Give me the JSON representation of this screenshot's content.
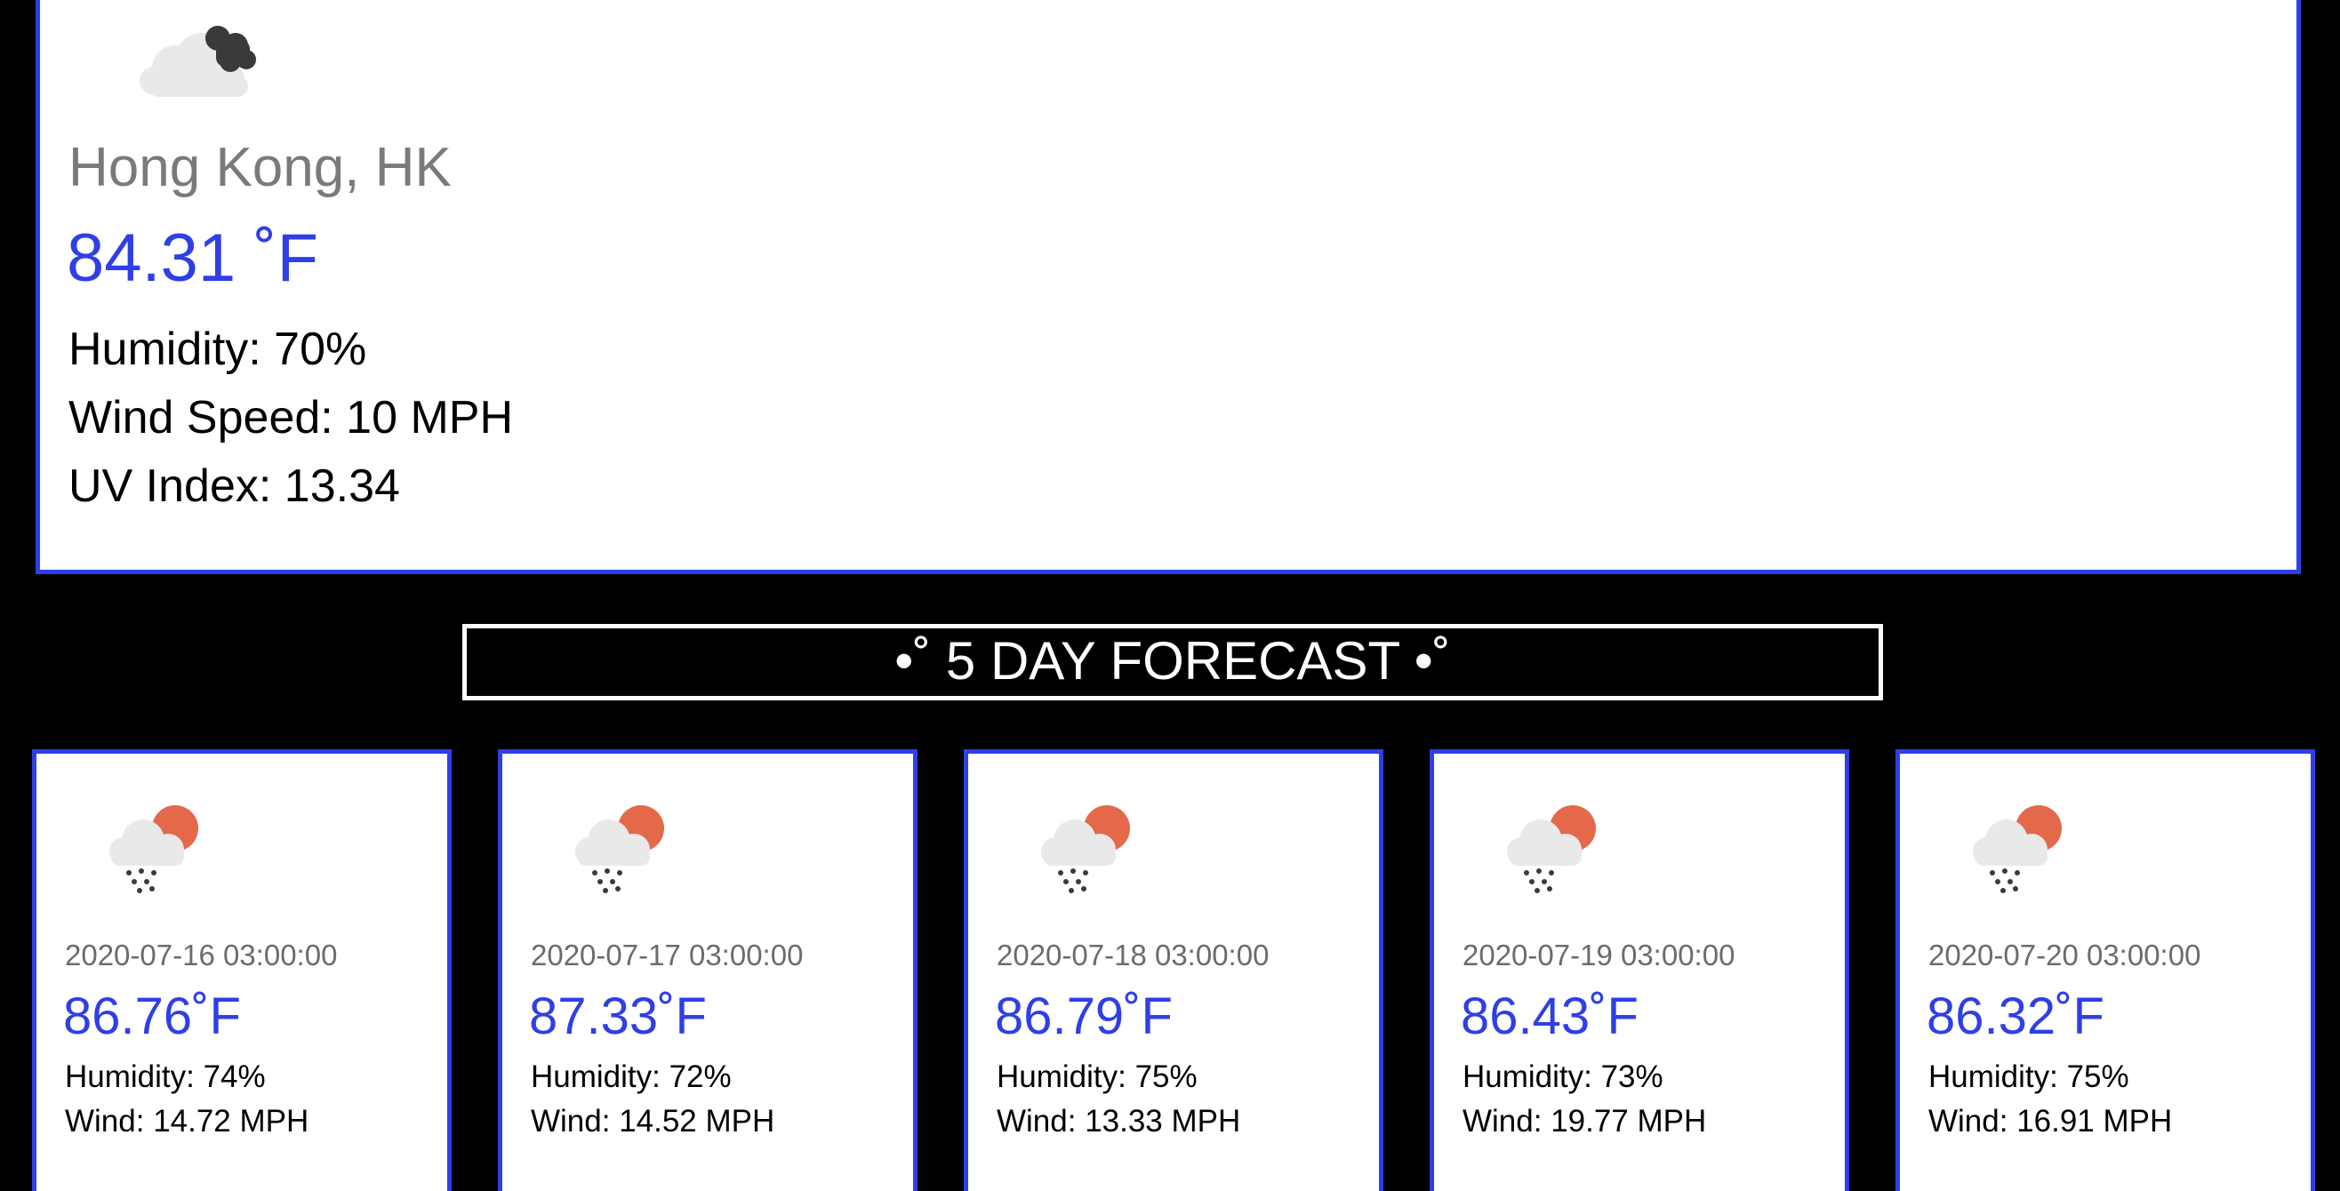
{
  "colors": {
    "background": "#000000",
    "card_background": "#ffffff",
    "accent": "#2f3fe6",
    "city_text": "#7a7a7a",
    "date_text": "#6b6b6b",
    "sun": "#e4694a",
    "cloud": "#e9e9e9",
    "dark_cloud": "#3a3a3a"
  },
  "current": {
    "icon": "dark-cloud-icon",
    "city": "Hong Kong, HK",
    "temperature": "84.31 ˚F",
    "humidity": "Humidity: 70%",
    "wind_speed": "Wind Speed: 10 MPH",
    "uv_index": "UV Index: 13.34"
  },
  "forecast": {
    "heading": "•˚ 5 DAY FORECAST •˚",
    "days": [
      {
        "icon": "rain-sun-cloud-icon",
        "date": "2020-07-16 03:00:00",
        "temperature": "86.76˚F",
        "humidity": "Humidity: 74%",
        "wind": "Wind: 14.72 MPH"
      },
      {
        "icon": "rain-sun-cloud-icon",
        "date": "2020-07-17 03:00:00",
        "temperature": "87.33˚F",
        "humidity": "Humidity: 72%",
        "wind": "Wind: 14.52 MPH"
      },
      {
        "icon": "rain-sun-cloud-icon",
        "date": "2020-07-18 03:00:00",
        "temperature": "86.79˚F",
        "humidity": "Humidity: 75%",
        "wind": "Wind: 13.33 MPH"
      },
      {
        "icon": "rain-sun-cloud-icon",
        "date": "2020-07-19 03:00:00",
        "temperature": "86.43˚F",
        "humidity": "Humidity: 73%",
        "wind": "Wind: 19.77 MPH"
      },
      {
        "icon": "rain-sun-cloud-icon",
        "date": "2020-07-20 03:00:00",
        "temperature": "86.32˚F",
        "humidity": "Humidity: 75%",
        "wind": "Wind: 16.91 MPH"
      }
    ]
  }
}
